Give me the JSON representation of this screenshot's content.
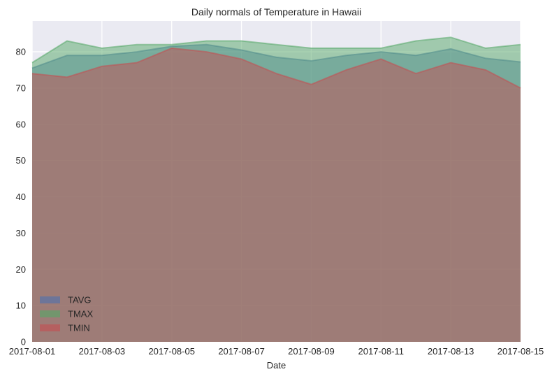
{
  "chart_data": {
    "type": "area",
    "title": "Daily normals of Temperature in Hawaii",
    "xlabel": "Date",
    "ylabel": "",
    "x": [
      "2017-08-01",
      "2017-08-02",
      "2017-08-03",
      "2017-08-04",
      "2017-08-05",
      "2017-08-06",
      "2017-08-07",
      "2017-08-08",
      "2017-08-09",
      "2017-08-10",
      "2017-08-11",
      "2017-08-12",
      "2017-08-13",
      "2017-08-14",
      "2017-08-15"
    ],
    "xticks": [
      "2017-08-01",
      "2017-08-03",
      "2017-08-05",
      "2017-08-07",
      "2017-08-09",
      "2017-08-11",
      "2017-08-13",
      "2017-08-15"
    ],
    "ylim": [
      0,
      88.5
    ],
    "yticks": [
      0,
      10,
      20,
      30,
      40,
      50,
      60,
      70,
      80
    ],
    "stacked": false,
    "grid": true,
    "legend_position": "lower-left",
    "background": "#EAEAF2",
    "series": [
      {
        "name": "TAVG",
        "color": "#4C72B0",
        "values": [
          75.5,
          79.0,
          79.0,
          80.0,
          81.5,
          82.0,
          80.5,
          78.5,
          77.5,
          79.0,
          80.0,
          79.0,
          80.8,
          78.2,
          77.2
        ]
      },
      {
        "name": "TMAX",
        "color": "#55A868",
        "values": [
          77.0,
          83.0,
          81.0,
          82.0,
          82.0,
          83.0,
          83.0,
          82.0,
          81.0,
          81.0,
          81.0,
          83.0,
          84.0,
          81.0,
          82.0
        ]
      },
      {
        "name": "TMIN",
        "color": "#C44E52",
        "values": [
          74.0,
          73.0,
          76.0,
          77.0,
          81.0,
          80.0,
          78.0,
          74.0,
          71.0,
          75.0,
          78.0,
          74.0,
          77.0,
          75.0,
          70.0
        ]
      }
    ]
  }
}
